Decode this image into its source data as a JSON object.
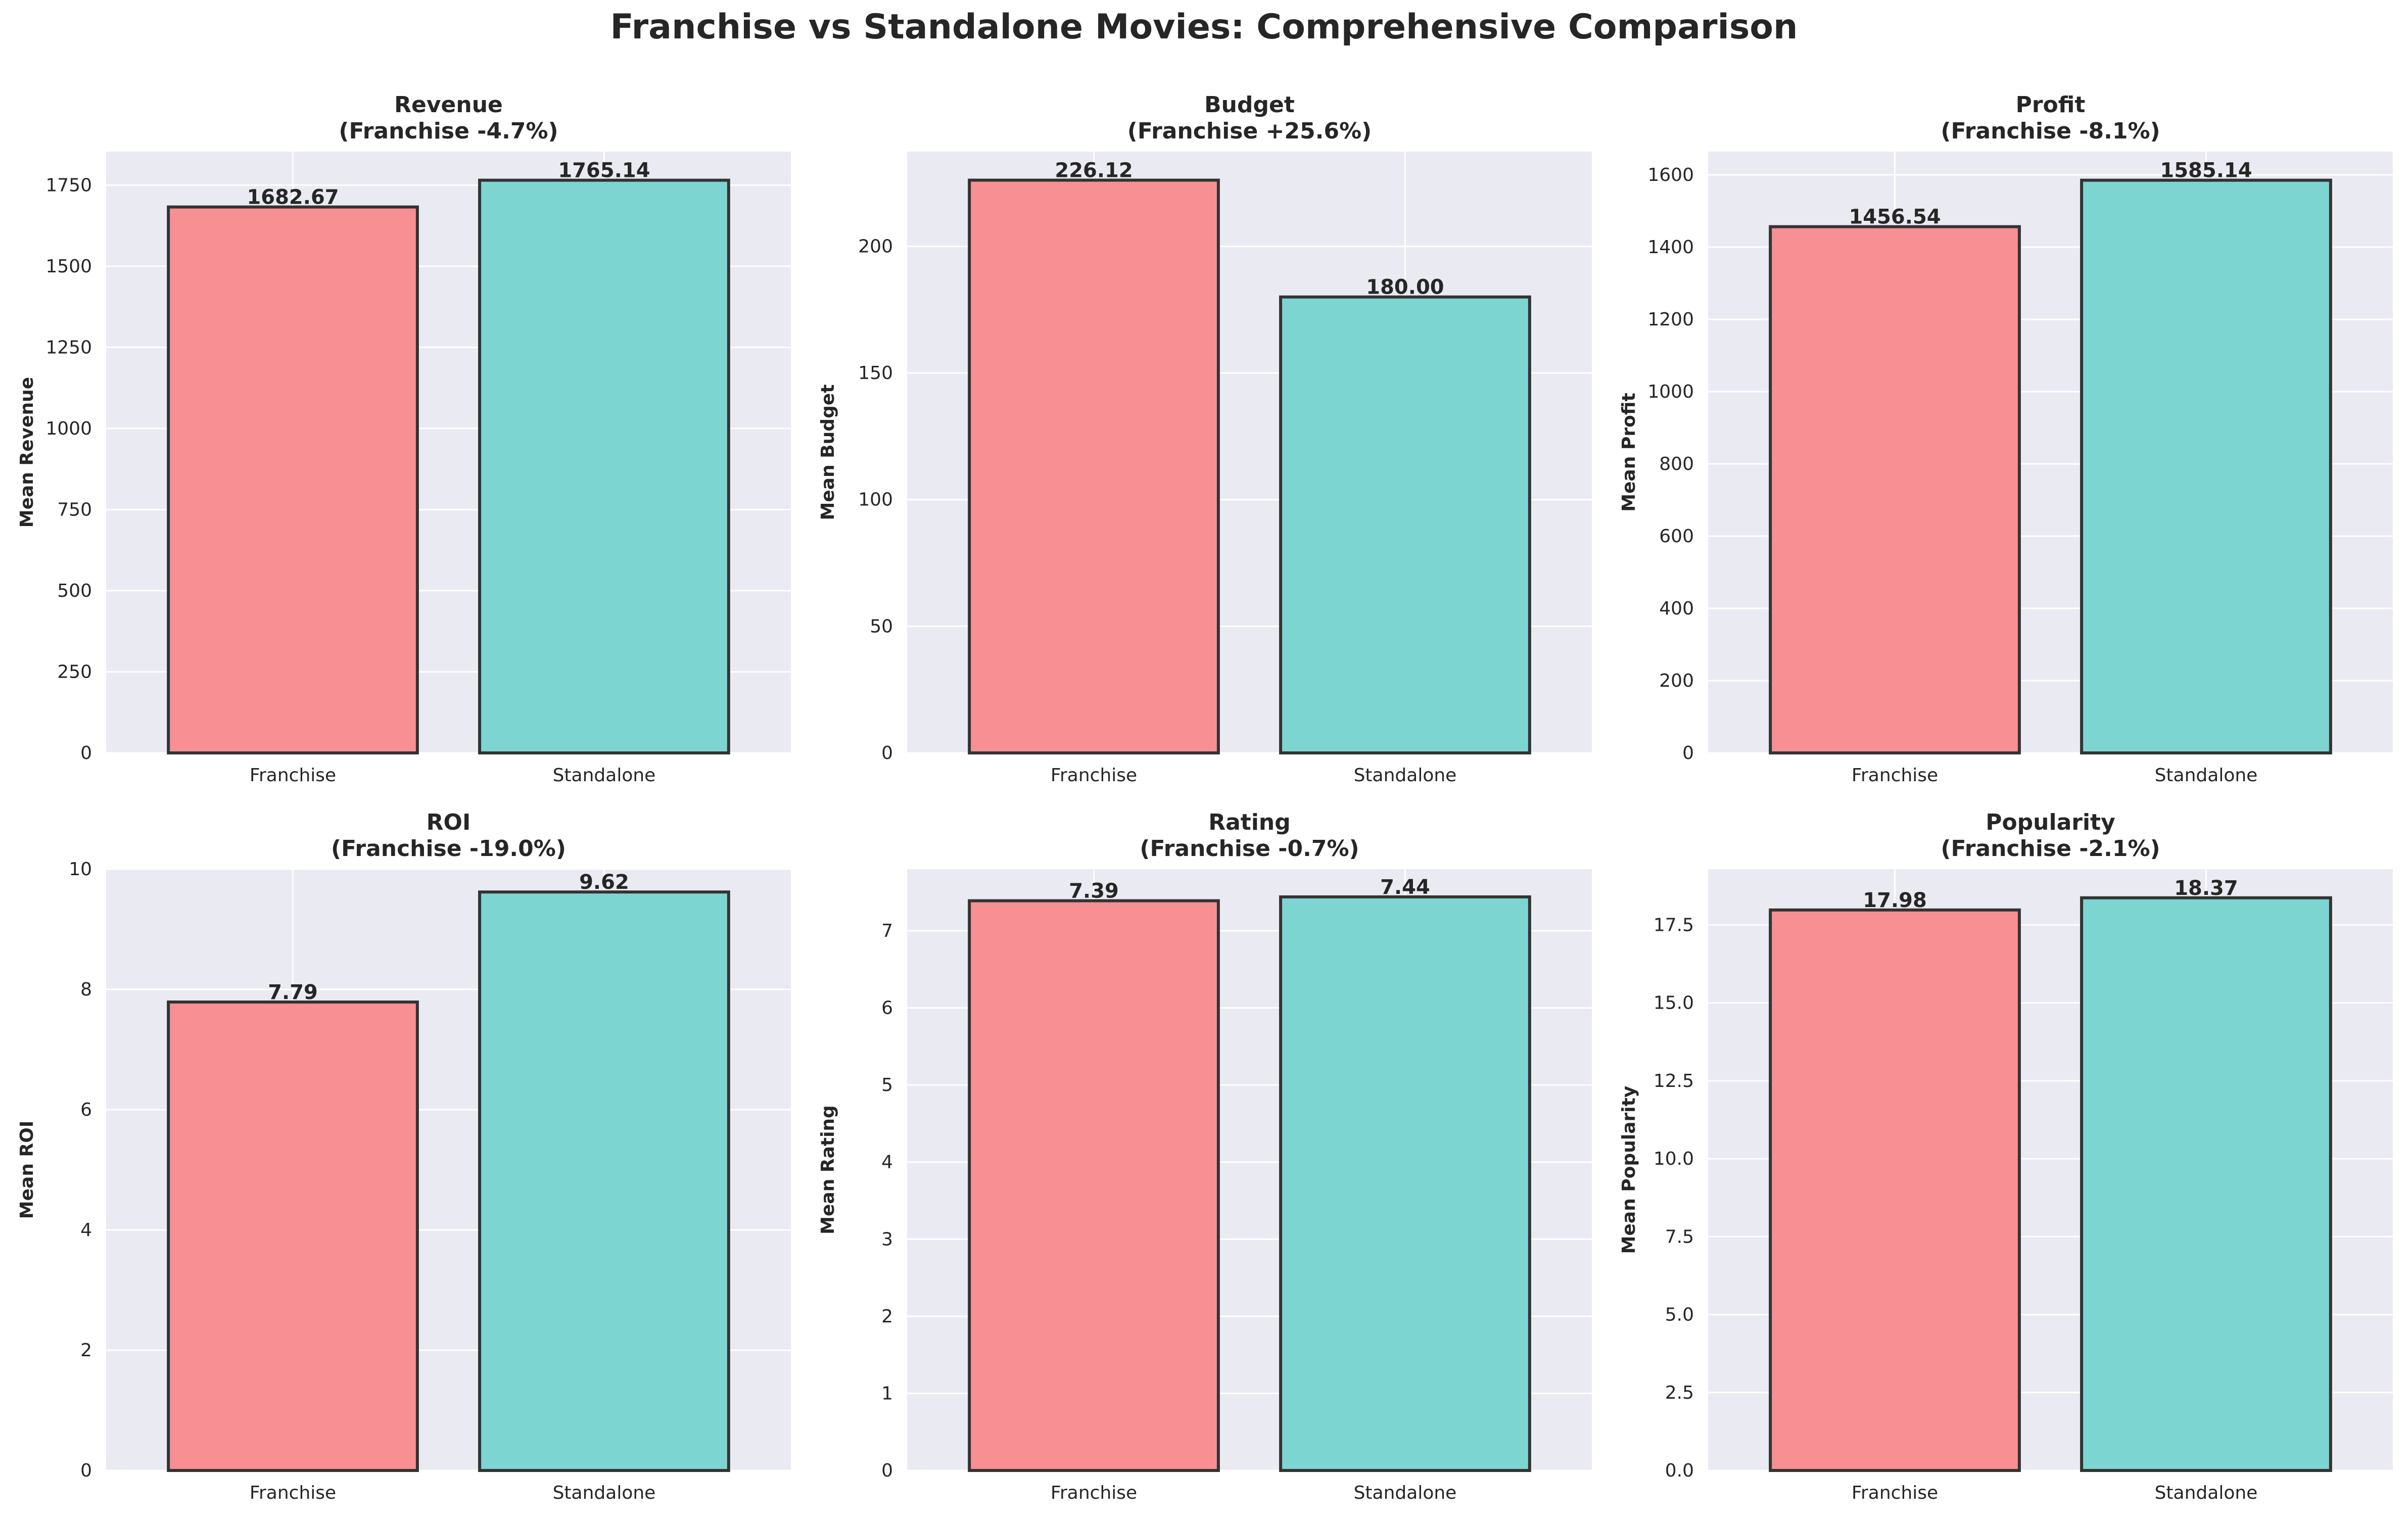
{
  "title": "Franchise vs Standalone Movies: Comprehensive Comparison",
  "colors": {
    "franchise": "#f78f93",
    "standalone": "#7dd5d2",
    "plot_background": "#eaeaf2",
    "grid": "#ffffff",
    "bar_edge": "#333333"
  },
  "chart_data": [
    {
      "type": "bar",
      "title": "Revenue",
      "subtitle": "(Franchise -4.7%)",
      "ylabel": "Mean Revenue",
      "categories": [
        "Franchise",
        "Standalone"
      ],
      "values": [
        1682.67,
        1765.14
      ],
      "value_labels": [
        "1682.67",
        "1765.14"
      ],
      "ylim": [
        0,
        1853.4
      ],
      "yticks": [
        0,
        250,
        500,
        750,
        1000,
        1250,
        1500,
        1750
      ],
      "ytick_labels": [
        "0",
        "250",
        "500",
        "750",
        "1000",
        "1250",
        "1500",
        "1750"
      ],
      "grid": true
    },
    {
      "type": "bar",
      "title": "Budget",
      "subtitle": "(Franchise +25.6%)",
      "ylabel": "Mean Budget",
      "categories": [
        "Franchise",
        "Standalone"
      ],
      "values": [
        226.12,
        180.0
      ],
      "value_labels": [
        "226.12",
        "180.00"
      ],
      "ylim": [
        0,
        237.4
      ],
      "yticks": [
        0,
        50,
        100,
        150,
        200
      ],
      "ytick_labels": [
        "0",
        "50",
        "100",
        "150",
        "200"
      ],
      "grid": true
    },
    {
      "type": "bar",
      "title": "Profit",
      "subtitle": "(Franchise -8.1%)",
      "ylabel": "Mean Profit",
      "categories": [
        "Franchise",
        "Standalone"
      ],
      "values": [
        1456.54,
        1585.14
      ],
      "value_labels": [
        "1456.54",
        "1585.14"
      ],
      "ylim": [
        0,
        1664.4
      ],
      "yticks": [
        0,
        200,
        400,
        600,
        800,
        1000,
        1200,
        1400,
        1600
      ],
      "ytick_labels": [
        "0",
        "200",
        "400",
        "600",
        "800",
        "1000",
        "1200",
        "1400",
        "1600"
      ],
      "grid": true
    },
    {
      "type": "bar",
      "title": "ROI",
      "subtitle": "(Franchise -19.0%)",
      "ylabel": "Mean ROI",
      "categories": [
        "Franchise",
        "Standalone"
      ],
      "values": [
        7.79,
        9.62
      ],
      "value_labels": [
        "7.79",
        "9.62"
      ],
      "ylim": [
        0,
        10.0
      ],
      "yticks": [
        0,
        2,
        4,
        6,
        8,
        10
      ],
      "ytick_labels": [
        "0",
        "2",
        "4",
        "6",
        "8",
        "10"
      ],
      "grid": true
    },
    {
      "type": "bar",
      "title": "Rating",
      "subtitle": "(Franchise -0.7%)",
      "ylabel": "Mean Rating",
      "categories": [
        "Franchise",
        "Standalone"
      ],
      "values": [
        7.39,
        7.44
      ],
      "value_labels": [
        "7.39",
        "7.44"
      ],
      "ylim": [
        0,
        7.8
      ],
      "yticks": [
        0,
        1,
        2,
        3,
        4,
        5,
        6,
        7
      ],
      "ytick_labels": [
        "0",
        "1",
        "2",
        "3",
        "4",
        "5",
        "6",
        "7"
      ],
      "grid": true
    },
    {
      "type": "bar",
      "title": "Popularity",
      "subtitle": "(Franchise -2.1%)",
      "ylabel": "Mean Popularity",
      "categories": [
        "Franchise",
        "Standalone"
      ],
      "values": [
        17.98,
        18.37
      ],
      "value_labels": [
        "17.98",
        "18.37"
      ],
      "ylim": [
        0,
        19.29
      ],
      "yticks": [
        0,
        2.5,
        5,
        7.5,
        10,
        12.5,
        15,
        17.5
      ],
      "ytick_labels": [
        "0.0",
        "2.5",
        "5.0",
        "7.5",
        "10.0",
        "12.5",
        "15.0",
        "17.5"
      ],
      "grid": true
    }
  ]
}
